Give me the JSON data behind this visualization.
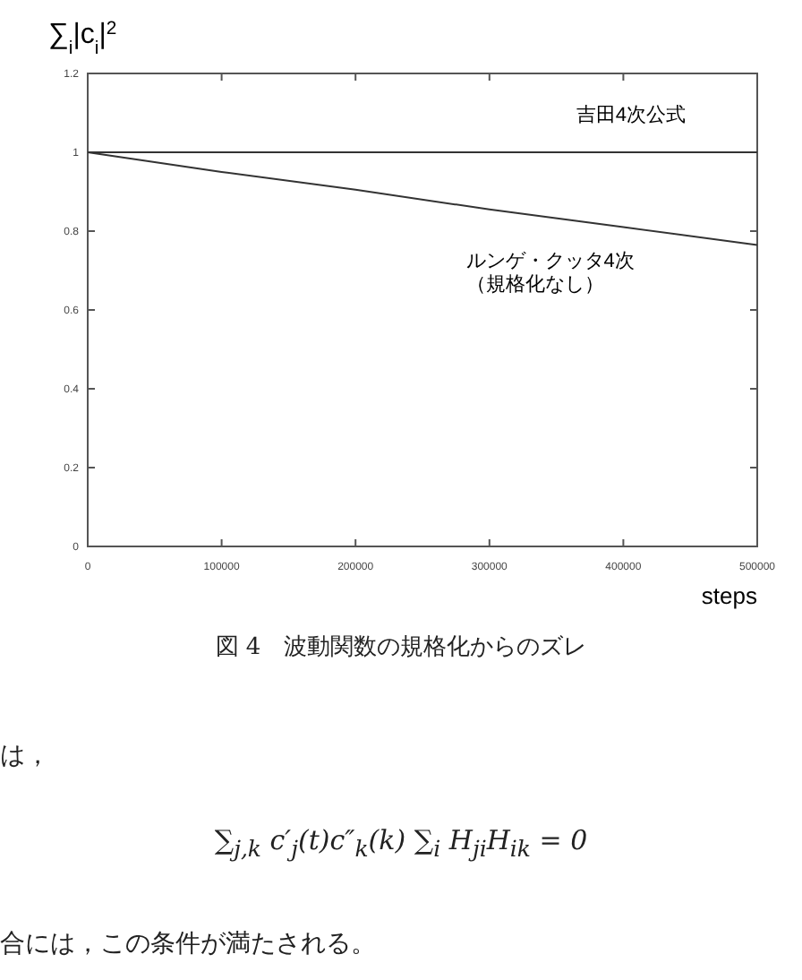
{
  "chart_data": {
    "type": "line",
    "ylabel": "∑$_{i}$|c$_{i}$|$^{2}$",
    "xlabel": "steps",
    "x": [
      0,
      100000,
      200000,
      300000,
      400000,
      500000
    ],
    "series": [
      {
        "name": "吉田4次公式",
        "color": "#333333",
        "values": [
          1,
          1,
          1,
          1,
          1,
          1
        ]
      },
      {
        "name": "ルンゲ・クッタ4次（規格化なし）",
        "color": "#333333",
        "values": [
          1,
          0.95,
          0.905,
          0.855,
          0.81,
          0.765
        ]
      }
    ],
    "xlim": [
      0,
      500000
    ],
    "xticks": [
      0,
      100000,
      200000,
      300000,
      400000,
      500000
    ],
    "ylim": [
      0,
      1.2
    ],
    "yticks": [
      0,
      {
        "value": 0.2,
        "label": "0.2"
      },
      {
        "value": 0.4,
        "label": "0.4"
      },
      {
        "value": 0.6,
        "label": "0.6"
      },
      {
        "value": 0.8,
        "label": "0.8"
      },
      1,
      {
        "value": 1.2,
        "label": "1.2"
      }
    ],
    "grid": false,
    "marker": "none",
    "line_style": "solid",
    "annotations": [
      "図 4　波動関数の規格化からのズレ",
      "は，",
      "∑$_{j,k}$ c′$_{j}$(t)c″$_{k}$(k) ∑$_{i}$ H$_{ji}$H$_{ik}$ = 0",
      "合には，この条件が満たされる。"
    ]
  }
}
